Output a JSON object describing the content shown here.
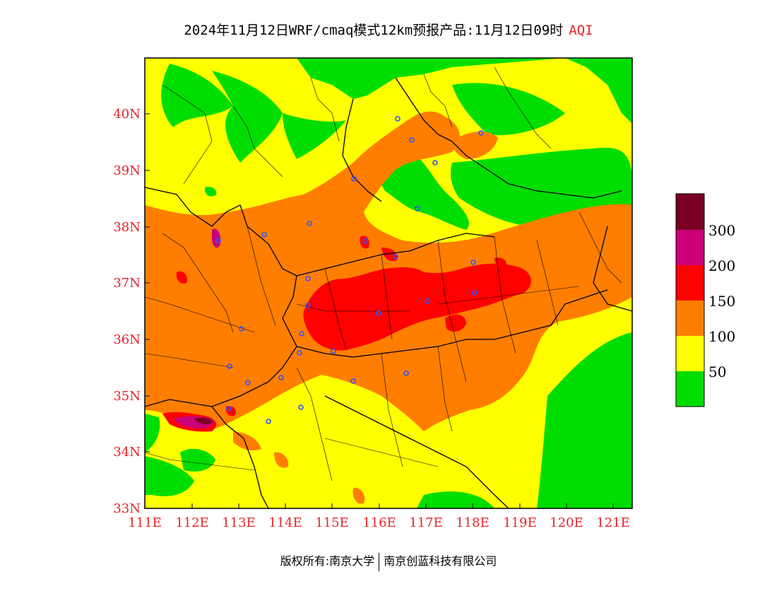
{
  "title": {
    "main": "2024年11月12日WRF/cmaq模式12km预报产品:11月12日09时",
    "product": "AQI"
  },
  "map": {
    "lat_labels": [
      "40N",
      "39N",
      "38N",
      "37N",
      "36N",
      "35N",
      "34N",
      "33N"
    ],
    "lon_labels": [
      "111E",
      "112E",
      "113E",
      "114E",
      "115E",
      "116E",
      "117E",
      "118E",
      "119E",
      "120E",
      "121E"
    ],
    "label_color": "#e8232a",
    "category_colors": {
      "good": "#00dd00",
      "moderate": "#ffff00",
      "usg": "#ff7e00",
      "unhealthy": "#ff0000",
      "very_unhealthy": "#cc0077",
      "hazardous": "#7a0023"
    }
  },
  "legend": {
    "thresholds": [
      "300",
      "200",
      "150",
      "100",
      "50"
    ],
    "colors": [
      "#7a0023",
      "#cc0077",
      "#ff0000",
      "#ff7e00",
      "#ffff00",
      "#00dd00"
    ]
  },
  "footer": {
    "copyright": "版权所有:南京大学",
    "company": "南京创蓝科技有限公司"
  }
}
